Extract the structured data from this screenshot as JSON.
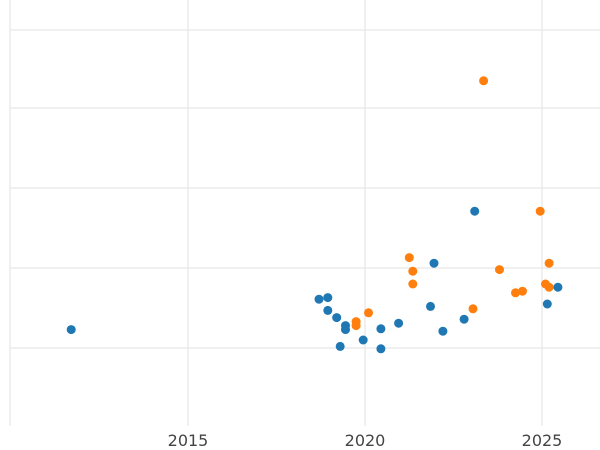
{
  "chart_data": {
    "type": "scatter",
    "title": "",
    "xlabel": "",
    "ylabel": "",
    "grid": true,
    "xlim": [
      2010,
      2026.5
    ],
    "ylim": [
      -2.3,
      2.85
    ],
    "x_ticks": [
      {
        "value": 2015,
        "label": "2015"
      },
      {
        "value": 2020,
        "label": "2020"
      },
      {
        "value": 2025,
        "label": "2025"
      }
    ],
    "y_gridlines": [
      -1,
      0,
      1,
      2
    ],
    "colors": {
      "blue": "#1f77b4",
      "orange": "#ff7f0e",
      "grid": "#e6e6e6",
      "tick_text": "#444444"
    },
    "series": [
      {
        "color": "#1f77b4",
        "points": [
          {
            "x": 2011.7,
            "y": -0.77
          },
          {
            "x": 2018.7,
            "y": -0.39
          },
          {
            "x": 2018.95,
            "y": -0.37
          },
          {
            "x": 2018.95,
            "y": -0.53
          },
          {
            "x": 2019.2,
            "y": -0.62
          },
          {
            "x": 2019.3,
            "y": -0.98
          },
          {
            "x": 2019.45,
            "y": -0.72
          },
          {
            "x": 2019.45,
            "y": -0.77
          },
          {
            "x": 2019.95,
            "y": -0.9
          },
          {
            "x": 2020.45,
            "y": -0.76
          },
          {
            "x": 2020.45,
            "y": -1.01
          },
          {
            "x": 2020.95,
            "y": -0.69
          },
          {
            "x": 2021.85,
            "y": -0.48
          },
          {
            "x": 2021.95,
            "y": 0.06
          },
          {
            "x": 2022.2,
            "y": -0.79
          },
          {
            "x": 2022.8,
            "y": -0.64
          },
          {
            "x": 2023.1,
            "y": 0.71
          },
          {
            "x": 2025.15,
            "y": -0.45
          },
          {
            "x": 2025.45,
            "y": -0.24
          }
        ]
      },
      {
        "color": "#ff7f0e",
        "points": [
          {
            "x": 2019.75,
            "y": -0.67
          },
          {
            "x": 2019.75,
            "y": -0.72
          },
          {
            "x": 2020.1,
            "y": -0.56
          },
          {
            "x": 2021.25,
            "y": 0.13
          },
          {
            "x": 2021.35,
            "y": -0.04
          },
          {
            "x": 2021.35,
            "y": -0.2
          },
          {
            "x": 2023.05,
            "y": -0.51
          },
          {
            "x": 2023.35,
            "y": 2.34
          },
          {
            "x": 2023.8,
            "y": -0.02
          },
          {
            "x": 2024.25,
            "y": -0.31
          },
          {
            "x": 2024.45,
            "y": -0.29
          },
          {
            "x": 2024.95,
            "y": 0.71
          },
          {
            "x": 2025.1,
            "y": -0.2
          },
          {
            "x": 2025.2,
            "y": 0.06
          },
          {
            "x": 2025.2,
            "y": -0.24
          }
        ]
      }
    ]
  }
}
